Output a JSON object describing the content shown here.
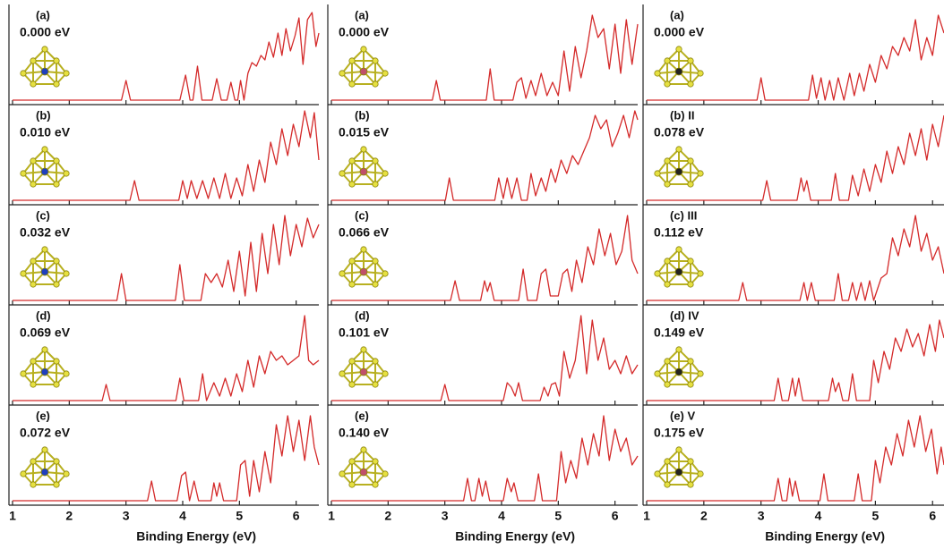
{
  "chart_data": [
    {
      "type": "line",
      "label": "(a)",
      "energy": "0.000 eV",
      "color": "#d42a2a",
      "xlim": [
        1,
        6.4
      ],
      "ylim": [
        0,
        1
      ],
      "xticks": [
        1,
        2,
        3,
        4,
        5,
        6
      ],
      "x": [
        1,
        2.92,
        3.0,
        3.08,
        3.95,
        4.05,
        4.13,
        4.18,
        4.26,
        4.34,
        4.52,
        4.6,
        4.68,
        4.78,
        4.85,
        4.92,
        4.97,
        5.02,
        5.08,
        5.15,
        5.22,
        5.3,
        5.38,
        5.45,
        5.52,
        5.6,
        5.68,
        5.75,
        5.82,
        5.9,
        5.98,
        6.05,
        6.12,
        6.2,
        6.28,
        6.35,
        6.4
      ],
      "values": [
        0,
        0,
        0.22,
        0,
        0,
        0.28,
        0,
        0,
        0.38,
        0,
        0,
        0.24,
        0,
        0,
        0.2,
        0,
        0,
        0.22,
        0,
        0.3,
        0.42,
        0.38,
        0.5,
        0.45,
        0.65,
        0.48,
        0.75,
        0.5,
        0.8,
        0.55,
        0.72,
        0.92,
        0.4,
        0.9,
        0.98,
        0.6,
        0.75
      ]
    },
    {
      "type": "line",
      "label": "(b)",
      "energy": "0.010 eV",
      "color": "#d42a2a",
      "xlim": [
        1,
        6.4
      ],
      "ylim": [
        0,
        1
      ],
      "xticks": [
        1,
        2,
        3,
        4,
        5,
        6
      ],
      "x": [
        1,
        3.07,
        3.15,
        3.23,
        3.93,
        4.0,
        4.08,
        4.15,
        4.25,
        4.35,
        4.45,
        4.55,
        4.65,
        4.75,
        4.85,
        4.95,
        5.05,
        5.15,
        5.25,
        5.35,
        5.45,
        5.55,
        5.65,
        5.75,
        5.85,
        5.95,
        6.05,
        6.15,
        6.25,
        6.32,
        6.4
      ],
      "values": [
        0,
        0,
        0.22,
        0,
        0,
        0.22,
        0.02,
        0.22,
        0.02,
        0.22,
        0.02,
        0.25,
        0.02,
        0.3,
        0.02,
        0.25,
        0.05,
        0.4,
        0.1,
        0.45,
        0.2,
        0.65,
        0.4,
        0.8,
        0.5,
        0.85,
        0.6,
        1.0,
        0.7,
        0.98,
        0.45
      ]
    },
    {
      "type": "line",
      "label": "(c)",
      "energy": "0.032 eV",
      "color": "#d42a2a",
      "xlim": [
        1,
        6.4
      ],
      "ylim": [
        0,
        1
      ],
      "xticks": [
        1,
        2,
        3,
        4,
        5,
        6
      ],
      "x": [
        1,
        2.84,
        2.92,
        3.0,
        3.87,
        3.95,
        4.03,
        4.32,
        4.4,
        4.5,
        4.6,
        4.7,
        4.8,
        4.9,
        5.0,
        5.1,
        5.2,
        5.3,
        5.4,
        5.5,
        5.6,
        5.7,
        5.8,
        5.9,
        6.0,
        6.1,
        6.2,
        6.3,
        6.4
      ],
      "values": [
        0,
        0,
        0.3,
        0,
        0,
        0.4,
        0,
        0,
        0.3,
        0.2,
        0.3,
        0.15,
        0.45,
        0.1,
        0.55,
        0.05,
        0.65,
        0.1,
        0.75,
        0.3,
        0.85,
        0.4,
        0.95,
        0.5,
        0.85,
        0.6,
        0.92,
        0.7,
        0.85
      ]
    },
    {
      "type": "line",
      "label": "(d)",
      "energy": "0.069 eV",
      "color": "#d42a2a",
      "xlim": [
        1,
        6.4
      ],
      "ylim": [
        0,
        1
      ],
      "xticks": [
        1,
        2,
        3,
        4,
        5,
        6
      ],
      "x": [
        1,
        2.58,
        2.65,
        2.72,
        3.88,
        3.95,
        4.02,
        4.28,
        4.35,
        4.42,
        4.55,
        4.65,
        4.75,
        4.85,
        4.95,
        5.05,
        5.15,
        5.25,
        5.35,
        5.45,
        5.55,
        5.65,
        5.75,
        5.85,
        5.95,
        6.05,
        6.15,
        6.22,
        6.3,
        6.4
      ],
      "values": [
        0,
        0,
        0.18,
        0,
        0,
        0.25,
        0,
        0,
        0.3,
        0,
        0.2,
        0.05,
        0.25,
        0.05,
        0.3,
        0.1,
        0.45,
        0.15,
        0.5,
        0.3,
        0.55,
        0.45,
        0.5,
        0.4,
        0.45,
        0.5,
        0.95,
        0.45,
        0.4,
        0.45
      ]
    },
    {
      "type": "line",
      "label": "(e)",
      "energy": "0.072 eV",
      "color": "#d42a2a",
      "xlim": [
        1,
        6.4
      ],
      "ylim": [
        0,
        1
      ],
      "xticks": [
        1,
        2,
        3,
        4,
        5,
        6
      ],
      "xlabel": "Binding Energy (eV)",
      "x": [
        1,
        3.38,
        3.45,
        3.52,
        3.9,
        3.98,
        4.05,
        4.12,
        4.2,
        4.28,
        4.5,
        4.55,
        4.6,
        4.65,
        4.72,
        4.95,
        5.02,
        5.1,
        5.18,
        5.25,
        5.35,
        5.45,
        5.55,
        5.65,
        5.75,
        5.85,
        5.95,
        6.05,
        6.15,
        6.25,
        6.32,
        6.4
      ],
      "values": [
        0,
        0,
        0.22,
        0,
        0,
        0.28,
        0.32,
        0,
        0.22,
        0,
        0,
        0.2,
        0.05,
        0.2,
        0,
        0,
        0.4,
        0.45,
        0.05,
        0.45,
        0.1,
        0.55,
        0.2,
        0.85,
        0.5,
        0.95,
        0.55,
        0.9,
        0.45,
        0.95,
        0.6,
        0.4
      ]
    },
    {
      "type": "line",
      "label": "(a)",
      "energy": "0.000 eV",
      "color": "#d42a2a",
      "xlim": [
        1,
        6.4
      ],
      "ylim": [
        0,
        1
      ],
      "xticks": [
        1,
        2,
        3,
        4,
        5,
        6
      ],
      "x": [
        1,
        2.78,
        2.85,
        2.92,
        3.73,
        3.8,
        3.87,
        4.2,
        4.27,
        4.35,
        4.43,
        4.52,
        4.6,
        4.7,
        4.8,
        4.9,
        5.0,
        5.1,
        5.2,
        5.3,
        5.4,
        5.5,
        5.6,
        5.7,
        5.8,
        5.9,
        6.0,
        6.1,
        6.2,
        6.3,
        6.4
      ],
      "values": [
        0,
        0,
        0.22,
        0,
        0,
        0.35,
        0,
        0,
        0.2,
        0.25,
        0.02,
        0.22,
        0.05,
        0.3,
        0.05,
        0.2,
        0.05,
        0.55,
        0.1,
        0.6,
        0.25,
        0.55,
        0.95,
        0.7,
        0.8,
        0.35,
        0.85,
        0.3,
        0.9,
        0.4,
        0.85
      ]
    },
    {
      "type": "line",
      "label": "(b)",
      "energy": "0.015 eV",
      "color": "#d42a2a",
      "xlim": [
        1,
        6.4
      ],
      "ylim": [
        0,
        1
      ],
      "xticks": [
        1,
        2,
        3,
        4,
        5,
        6
      ],
      "x": [
        1,
        3.01,
        3.08,
        3.15,
        3.88,
        3.95,
        4.03,
        4.1,
        4.18,
        4.27,
        4.35,
        4.45,
        4.52,
        4.6,
        4.7,
        4.78,
        4.87,
        4.95,
        5.05,
        5.15,
        5.25,
        5.35,
        5.45,
        5.55,
        5.65,
        5.75,
        5.85,
        5.95,
        6.05,
        6.15,
        6.25,
        6.35,
        6.4
      ],
      "values": [
        0,
        0,
        0.25,
        0,
        0,
        0.25,
        0.02,
        0.25,
        0.02,
        0.25,
        0,
        0,
        0.3,
        0.05,
        0.25,
        0.1,
        0.35,
        0.2,
        0.45,
        0.3,
        0.5,
        0.4,
        0.55,
        0.7,
        0.95,
        0.8,
        0.9,
        0.6,
        0.75,
        0.95,
        0.7,
        1.0,
        0.9
      ]
    },
    {
      "type": "line",
      "label": "(c)",
      "energy": "0.066 eV",
      "color": "#d42a2a",
      "xlim": [
        1,
        6.4
      ],
      "ylim": [
        0,
        1
      ],
      "xticks": [
        1,
        2,
        3,
        4,
        5,
        6
      ],
      "x": [
        1,
        3.1,
        3.18,
        3.26,
        3.63,
        3.7,
        3.75,
        3.8,
        3.87,
        4.3,
        4.38,
        4.46,
        4.62,
        4.7,
        4.78,
        4.86,
        5.0,
        5.08,
        5.16,
        5.24,
        5.32,
        5.42,
        5.52,
        5.62,
        5.72,
        5.82,
        5.92,
        6.02,
        6.12,
        6.22,
        6.3,
        6.4
      ],
      "values": [
        0,
        0,
        0.22,
        0,
        0,
        0.22,
        0.1,
        0.2,
        0,
        0,
        0.35,
        0,
        0,
        0.3,
        0.35,
        0.05,
        0.05,
        0.3,
        0.35,
        0.1,
        0.45,
        0.2,
        0.6,
        0.4,
        0.8,
        0.5,
        0.75,
        0.4,
        0.55,
        0.95,
        0.45,
        0.3
      ]
    },
    {
      "type": "line",
      "label": "(d)",
      "energy": "0.101 eV",
      "color": "#d42a2a",
      "xlim": [
        1,
        6.4
      ],
      "ylim": [
        0,
        1
      ],
      "xticks": [
        1,
        2,
        3,
        4,
        5,
        6
      ],
      "x": [
        1,
        2.93,
        3.0,
        3.07,
        4.03,
        4.1,
        4.17,
        4.24,
        4.3,
        4.37,
        4.68,
        4.75,
        4.82,
        4.88,
        4.95,
        5.02,
        5.1,
        5.2,
        5.3,
        5.4,
        5.5,
        5.6,
        5.7,
        5.8,
        5.9,
        6.0,
        6.1,
        6.2,
        6.3,
        6.4
      ],
      "values": [
        0,
        0,
        0.18,
        0,
        0,
        0.2,
        0.15,
        0.05,
        0.2,
        0,
        0,
        0.15,
        0.05,
        0.18,
        0.2,
        0.05,
        0.55,
        0.25,
        0.45,
        0.95,
        0.3,
        0.9,
        0.45,
        0.7,
        0.35,
        0.45,
        0.3,
        0.5,
        0.3,
        0.4
      ]
    },
    {
      "type": "line",
      "label": "(e)",
      "energy": "0.140 eV",
      "color": "#d42a2a",
      "xlim": [
        1,
        6.4
      ],
      "ylim": [
        0,
        1
      ],
      "xticks": [
        1,
        2,
        3,
        4,
        5,
        6
      ],
      "xlabel": "Binding Energy (eV)",
      "x": [
        1,
        3.33,
        3.4,
        3.47,
        3.53,
        3.6,
        3.66,
        3.72,
        3.79,
        4.03,
        4.1,
        4.17,
        4.22,
        4.29,
        4.58,
        4.65,
        4.72,
        4.97,
        5.05,
        5.13,
        5.22,
        5.32,
        5.42,
        5.52,
        5.62,
        5.72,
        5.8,
        5.9,
        6.0,
        6.1,
        6.2,
        6.3,
        6.4
      ],
      "values": [
        0,
        0,
        0.25,
        0,
        0,
        0.25,
        0.05,
        0.22,
        0,
        0,
        0.25,
        0.1,
        0.2,
        0,
        0,
        0.3,
        0,
        0,
        0.55,
        0.2,
        0.45,
        0.25,
        0.7,
        0.4,
        0.75,
        0.5,
        0.95,
        0.45,
        0.8,
        0.55,
        0.7,
        0.4,
        0.5
      ]
    },
    {
      "type": "line",
      "label": "(a)",
      "energy": "0.000 eV",
      "color": "#d42a2a",
      "xlim": [
        1,
        6.2
      ],
      "ylim": [
        0,
        1
      ],
      "xticks": [
        1,
        2,
        3,
        4,
        5,
        6
      ],
      "x": [
        1,
        2.93,
        3.0,
        3.07,
        3.83,
        3.9,
        3.97,
        4.05,
        4.12,
        4.2,
        4.27,
        4.35,
        4.45,
        4.55,
        4.63,
        4.72,
        4.8,
        4.9,
        5.0,
        5.1,
        5.2,
        5.3,
        5.4,
        5.5,
        5.6,
        5.7,
        5.8,
        5.9,
        6.0,
        6.1,
        6.2
      ],
      "values": [
        0,
        0,
        0.25,
        0,
        0,
        0.28,
        0.02,
        0.25,
        0,
        0.22,
        0,
        0.25,
        0,
        0.3,
        0.05,
        0.3,
        0.1,
        0.4,
        0.2,
        0.5,
        0.35,
        0.6,
        0.5,
        0.7,
        0.55,
        0.9,
        0.45,
        0.7,
        0.5,
        0.95,
        0.75
      ]
    },
    {
      "type": "line",
      "label": "(b) II",
      "energy": "0.078 eV",
      "color": "#d42a2a",
      "xlim": [
        1,
        6.2
      ],
      "ylim": [
        0,
        1
      ],
      "xticks": [
        1,
        2,
        3,
        4,
        5,
        6
      ],
      "x": [
        1,
        3.03,
        3.1,
        3.17,
        3.63,
        3.7,
        3.75,
        3.8,
        3.87,
        4.23,
        4.3,
        4.37,
        4.53,
        4.6,
        4.7,
        4.8,
        4.9,
        5.0,
        5.1,
        5.2,
        5.3,
        5.4,
        5.5,
        5.6,
        5.7,
        5.8,
        5.9,
        6.0,
        6.1,
        6.2
      ],
      "values": [
        0,
        0,
        0.22,
        0,
        0,
        0.25,
        0.1,
        0.22,
        0,
        0,
        0.3,
        0,
        0,
        0.28,
        0.05,
        0.35,
        0.1,
        0.4,
        0.2,
        0.55,
        0.3,
        0.6,
        0.4,
        0.75,
        0.5,
        0.8,
        0.45,
        0.85,
        0.6,
        0.95
      ]
    },
    {
      "type": "line",
      "label": "(c) III",
      "energy": "0.112 eV",
      "color": "#d42a2a",
      "xlim": [
        1,
        6.2
      ],
      "ylim": [
        0,
        1
      ],
      "xticks": [
        1,
        2,
        3,
        4,
        5,
        6
      ],
      "x": [
        1,
        2.61,
        2.68,
        2.75,
        3.68,
        3.75,
        3.81,
        3.88,
        3.95,
        4.28,
        4.35,
        4.42,
        4.53,
        4.6,
        4.67,
        4.75,
        4.82,
        4.9,
        4.97,
        5.1,
        5.2,
        5.3,
        5.4,
        5.5,
        5.6,
        5.7,
        5.8,
        5.9,
        6.0,
        6.1,
        6.2
      ],
      "values": [
        0,
        0,
        0.2,
        0,
        0,
        0.2,
        0,
        0.2,
        0,
        0,
        0.3,
        0,
        0,
        0.2,
        0,
        0.2,
        0,
        0.22,
        0,
        0.25,
        0.3,
        0.7,
        0.5,
        0.8,
        0.6,
        0.95,
        0.55,
        0.75,
        0.45,
        0.6,
        0.3
      ]
    },
    {
      "type": "line",
      "label": "(d) IV",
      "energy": "0.149 eV",
      "color": "#d42a2a",
      "xlim": [
        1,
        6.2
      ],
      "ylim": [
        0,
        1
      ],
      "xticks": [
        1,
        2,
        3,
        4,
        5,
        6
      ],
      "x": [
        1,
        3.23,
        3.3,
        3.37,
        3.48,
        3.55,
        3.6,
        3.66,
        3.73,
        4.18,
        4.25,
        4.3,
        4.36,
        4.43,
        4.53,
        4.6,
        4.67,
        4.9,
        4.97,
        5.05,
        5.15,
        5.25,
        5.35,
        5.45,
        5.55,
        5.65,
        5.75,
        5.85,
        5.95,
        6.05,
        6.12,
        6.2
      ],
      "values": [
        0,
        0,
        0.25,
        0,
        0,
        0.25,
        0.05,
        0.25,
        0,
        0,
        0.25,
        0.1,
        0.2,
        0,
        0,
        0.3,
        0,
        0,
        0.45,
        0.2,
        0.55,
        0.35,
        0.7,
        0.55,
        0.8,
        0.6,
        0.75,
        0.5,
        0.85,
        0.55,
        0.9,
        0.7
      ]
    },
    {
      "type": "line",
      "label": "(e) V",
      "energy": "0.175 eV",
      "color": "#d42a2a",
      "xlim": [
        1,
        6.2
      ],
      "ylim": [
        0,
        1
      ],
      "xticks": [
        1,
        2,
        3,
        4,
        5,
        6
      ],
      "xlabel": "Binding Energy (eV)",
      "x": [
        1,
        3.23,
        3.3,
        3.37,
        3.45,
        3.5,
        3.55,
        3.6,
        3.67,
        4.03,
        4.1,
        4.17,
        4.63,
        4.7,
        4.77,
        4.93,
        5.0,
        5.08,
        5.18,
        5.28,
        5.38,
        5.48,
        5.58,
        5.68,
        5.78,
        5.88,
        5.98,
        6.08,
        6.15,
        6.2
      ],
      "values": [
        0,
        0,
        0.25,
        0,
        0,
        0.25,
        0.05,
        0.22,
        0,
        0,
        0.3,
        0,
        0,
        0.3,
        0,
        0,
        0.45,
        0.2,
        0.6,
        0.4,
        0.75,
        0.5,
        0.9,
        0.6,
        0.95,
        0.55,
        0.8,
        0.3,
        0.6,
        0.4
      ]
    }
  ]
}
